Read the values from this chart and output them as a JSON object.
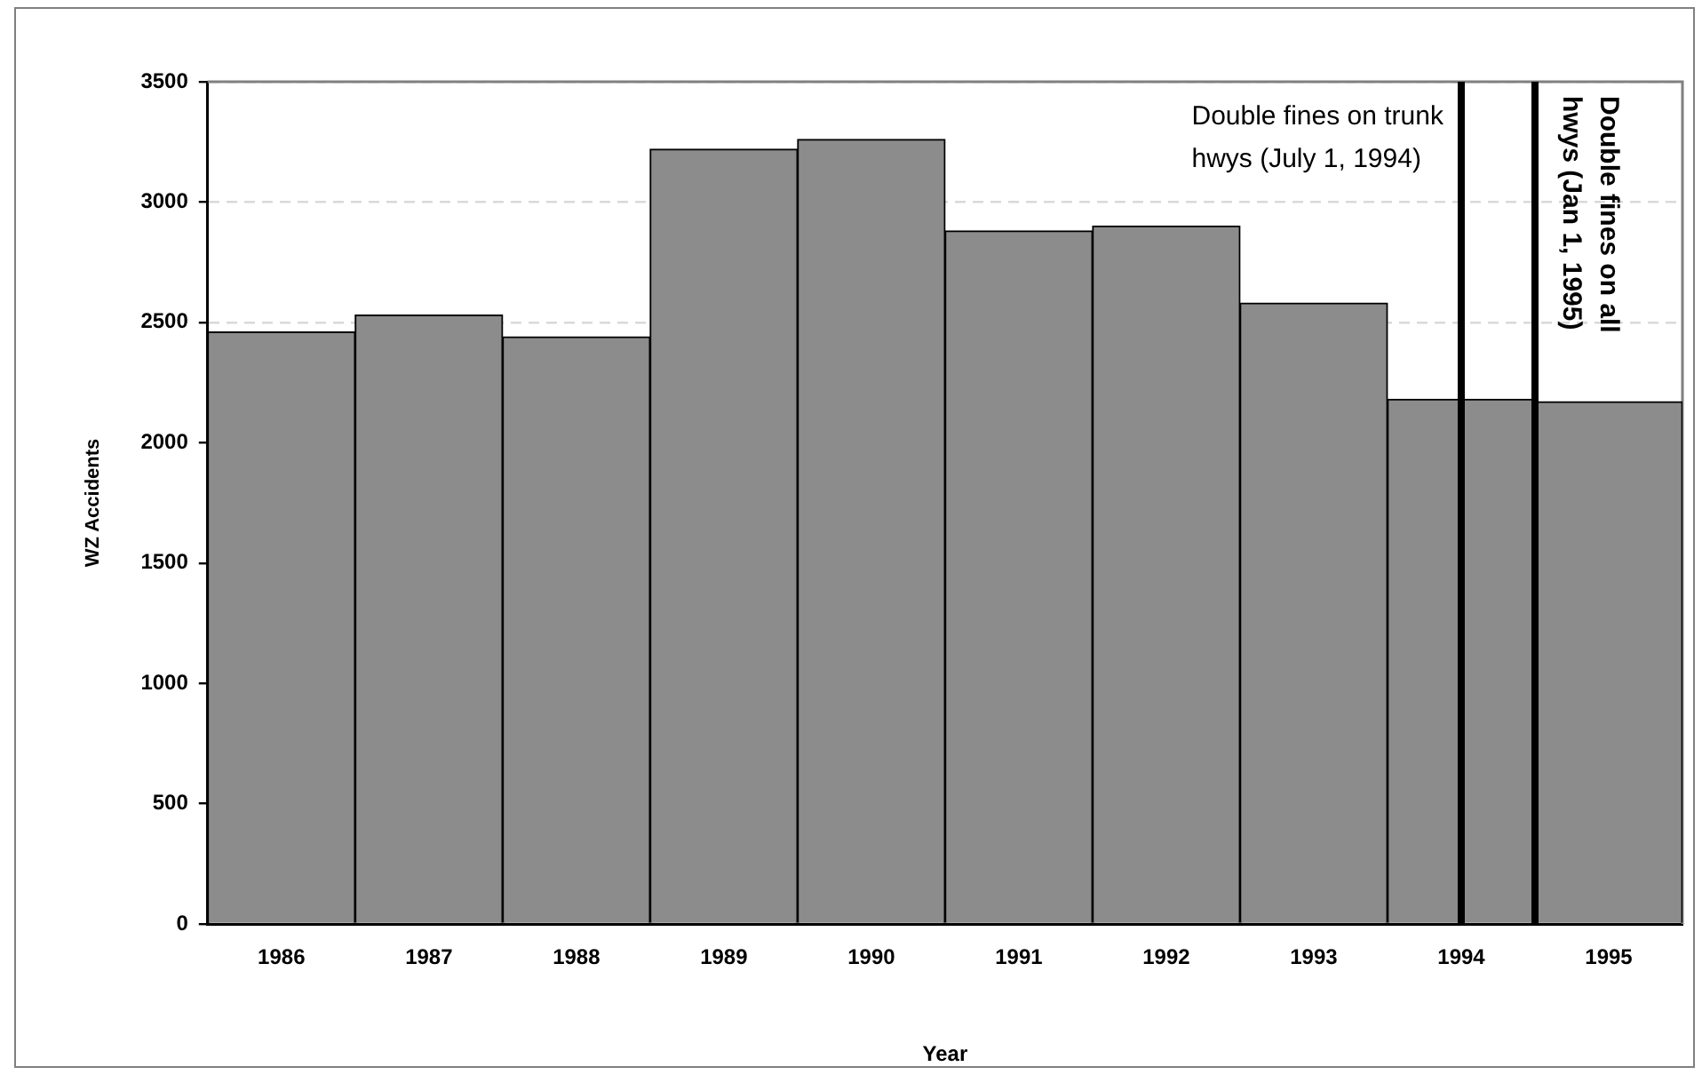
{
  "chart_data": {
    "type": "bar",
    "xlabel": "Year",
    "ylabel": "WZ Accidents",
    "x": [
      1986,
      1987,
      1988,
      1989,
      1990,
      1991,
      1992,
      1993,
      1994,
      1995
    ],
    "values": [
      2460,
      2530,
      2440,
      3220,
      3260,
      2880,
      2900,
      2580,
      2180,
      2170
    ],
    "color": "#8c8c8c",
    "xlim": [
      1985.5,
      1995.5
    ],
    "xticks": [
      1986,
      1987,
      1988,
      1989,
      1990,
      1991,
      1992,
      1993,
      1994,
      1995
    ],
    "ylim": [
      0,
      3500
    ],
    "yticks": [
      0,
      500,
      1000,
      1500,
      2000,
      2500,
      3000,
      3500
    ],
    "grid": "y",
    "legend": false,
    "ref_lines": [
      {
        "axis": "x",
        "value": 1994,
        "label": "Double fines on trunk hwys (July 1, 1994)",
        "color": "#000000"
      },
      {
        "axis": "x",
        "value": 1994.5,
        "label": "Double fines on all hwys (Jan 1, 1995)",
        "color": "#000000"
      }
    ]
  }
}
